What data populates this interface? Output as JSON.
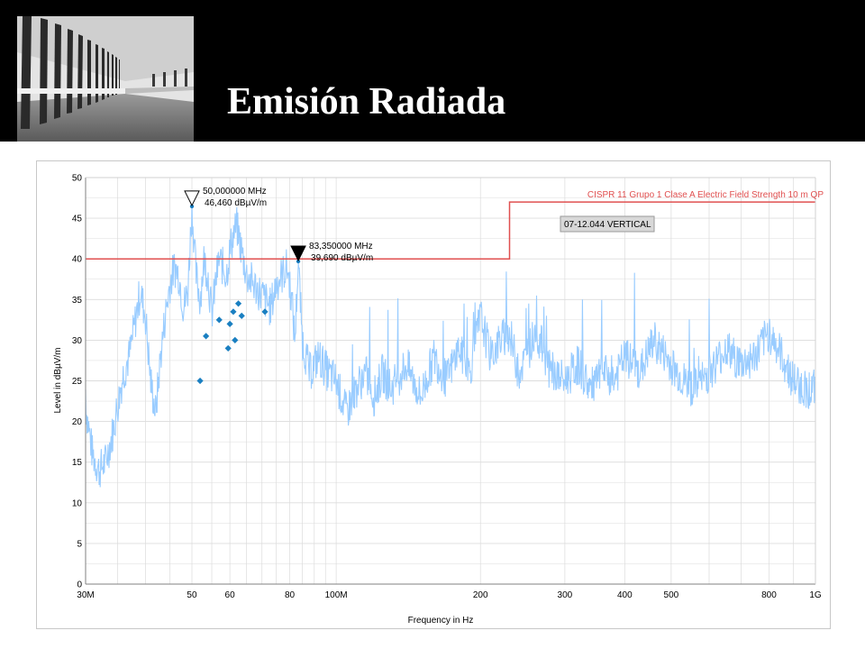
{
  "slide": {
    "title": "Emisión Radiada"
  },
  "colors": {
    "header_bg": "#000000",
    "title_text": "#ffffff",
    "trace": "#99ccff",
    "limit_line": "#e05050",
    "markers": "#1a7fc1",
    "grid": "#dcdcdc"
  },
  "chart_data": {
    "type": "line",
    "xscale": "log",
    "xlabel": "Frequency in Hz",
    "ylabel": "Level in dBµV/m",
    "xlim": [
      30,
      1000
    ],
    "ylim": [
      0,
      50
    ],
    "grid": true,
    "x_ticks": [
      {
        "value": 30,
        "label": "30M"
      },
      {
        "value": 50,
        "label": "50"
      },
      {
        "value": 60,
        "label": "60"
      },
      {
        "value": 80,
        "label": "80"
      },
      {
        "value": 100,
        "label": "100M"
      },
      {
        "value": 200,
        "label": "200"
      },
      {
        "value": 300,
        "label": "300"
      },
      {
        "value": 400,
        "label": "400"
      },
      {
        "value": 500,
        "label": "500"
      },
      {
        "value": 800,
        "label": "800"
      },
      {
        "value": 1000,
        "label": "1G"
      }
    ],
    "y_ticks": [
      0,
      5,
      10,
      15,
      20,
      25,
      30,
      35,
      40,
      45,
      50
    ],
    "limit_line": {
      "name": "CISPR 11 Grupo 1 Clase A Electric Field Strength 10 m QP",
      "points": [
        [
          30,
          40
        ],
        [
          230,
          40
        ],
        [
          230,
          47
        ],
        [
          1000,
          47
        ]
      ]
    },
    "legend_box": "07-12.044 VERTICAL",
    "trace_envelope": [
      [
        30,
        22
      ],
      [
        31,
        16
      ],
      [
        32,
        14
      ],
      [
        33,
        15
      ],
      [
        34,
        18
      ],
      [
        35,
        22
      ],
      [
        36,
        26
      ],
      [
        37,
        28
      ],
      [
        38,
        32
      ],
      [
        39,
        36
      ],
      [
        40,
        33
      ],
      [
        41,
        25
      ],
      [
        42,
        21
      ],
      [
        43,
        28
      ],
      [
        44,
        33
      ],
      [
        45,
        37
      ],
      [
        46,
        39
      ],
      [
        47,
        38
      ],
      [
        48,
        34
      ],
      [
        49,
        36
      ],
      [
        50,
        46.46
      ],
      [
        51,
        38
      ],
      [
        52,
        35
      ],
      [
        53,
        40
      ],
      [
        54,
        38
      ],
      [
        55,
        33
      ],
      [
        56,
        37
      ],
      [
        57,
        40
      ],
      [
        58,
        39
      ],
      [
        59,
        38
      ],
      [
        60,
        41
      ],
      [
        61,
        43
      ],
      [
        62,
        44
      ],
      [
        63,
        42
      ],
      [
        64,
        40
      ],
      [
        65,
        38
      ],
      [
        67,
        37
      ],
      [
        69,
        36
      ],
      [
        71,
        35
      ],
      [
        73,
        34
      ],
      [
        75,
        37
      ],
      [
        77,
        38
      ],
      [
        79,
        39
      ],
      [
        80,
        37
      ],
      [
        81,
        34
      ],
      [
        82,
        30
      ],
      [
        83.35,
        39.69
      ],
      [
        85,
        30
      ],
      [
        88,
        26
      ],
      [
        92,
        28
      ],
      [
        96,
        26
      ],
      [
        100,
        25
      ],
      [
        105,
        21
      ],
      [
        110,
        24
      ],
      [
        115,
        26
      ],
      [
        120,
        23
      ],
      [
        125,
        26
      ],
      [
        130,
        24
      ],
      [
        140,
        27
      ],
      [
        150,
        23
      ],
      [
        160,
        28
      ],
      [
        170,
        25
      ],
      [
        180,
        29
      ],
      [
        190,
        26
      ],
      [
        200,
        33
      ],
      [
        210,
        28
      ],
      [
        220,
        30
      ],
      [
        230,
        31
      ],
      [
        240,
        26
      ],
      [
        250,
        28
      ],
      [
        260,
        31
      ],
      [
        270,
        29
      ],
      [
        280,
        26
      ],
      [
        300,
        25
      ],
      [
        320,
        27
      ],
      [
        340,
        24
      ],
      [
        360,
        26
      ],
      [
        380,
        25
      ],
      [
        400,
        28
      ],
      [
        430,
        26
      ],
      [
        460,
        30
      ],
      [
        500,
        27
      ],
      [
        530,
        25
      ],
      [
        560,
        24
      ],
      [
        600,
        26
      ],
      [
        650,
        29
      ],
      [
        700,
        27
      ],
      [
        750,
        28
      ],
      [
        800,
        31
      ],
      [
        850,
        28
      ],
      [
        900,
        25
      ],
      [
        950,
        24
      ],
      [
        1000,
        24
      ]
    ],
    "qp_markers": [
      {
        "x": 52,
        "y": 25
      },
      {
        "x": 53.5,
        "y": 30.5
      },
      {
        "x": 57,
        "y": 32.5
      },
      {
        "x": 59.5,
        "y": 29
      },
      {
        "x": 60,
        "y": 32
      },
      {
        "x": 61,
        "y": 33.5
      },
      {
        "x": 61.5,
        "y": 30
      },
      {
        "x": 62.5,
        "y": 34.5
      },
      {
        "x": 63.5,
        "y": 33
      },
      {
        "x": 71,
        "y": 33.5
      }
    ],
    "annotations": [
      {
        "x": 50,
        "y": 46.46,
        "style": "open",
        "freq": "50,000000 MHz",
        "level": "46,460 dBµV/m"
      },
      {
        "x": 83.35,
        "y": 39.69,
        "style": "filled",
        "freq": "83,350000 MHz",
        "level": "39,690 dBµV/m"
      }
    ]
  }
}
